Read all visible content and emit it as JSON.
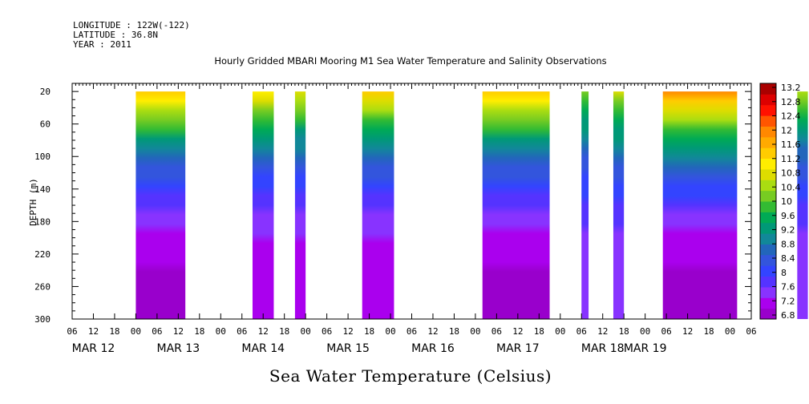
{
  "header": {
    "longitude": "LONGITUDE : 122W(-122)",
    "latitude": "LATITUDE : 36.8N",
    "year": "YEAR : 2011"
  },
  "chart_data": {
    "type": "heatmap",
    "title": "Hourly Gridded MBARI Mooring M1 Sea Water Temperature and Salinity Observations",
    "xlabel": "Sea Water Temperature (Celsius)",
    "ylabel": "DEPTH (m)",
    "y_ticks": [
      20,
      60,
      100,
      140,
      180,
      220,
      260,
      300
    ],
    "ylim": [
      300,
      10
    ],
    "x_hour_ticks": [
      "06",
      "12",
      "18",
      "00",
      "06",
      "12",
      "18",
      "00",
      "06",
      "12",
      "18",
      "00",
      "06",
      "12",
      "18",
      "00",
      "06",
      "12",
      "18",
      "00",
      "06",
      "12",
      "18",
      "00",
      "06",
      "12",
      "18",
      "00",
      "06",
      "12",
      "18",
      "00",
      "06"
    ],
    "date_labels": [
      "MAR 12",
      "MAR 13",
      "MAR 14",
      "MAR 15",
      "MAR 16",
      "MAR 17",
      "MAR 18",
      "MAR 19"
    ],
    "x_range_hours": [
      6,
      198
    ],
    "colorbar": {
      "labels": [
        "13.2",
        "12.8",
        "12.4",
        "12",
        "11.6",
        "11.2",
        "10.8",
        "10.4",
        "10",
        "9.6",
        "9.2",
        "8.8",
        "8.4",
        "8",
        "7.6",
        "7.2",
        "6.8"
      ],
      "min": 6.8,
      "max": 13.2,
      "colors": [
        "#9900cc",
        "#aa00ee",
        "#8833ff",
        "#5533ff",
        "#3344ff",
        "#3355dd",
        "#2266bb",
        "#118899",
        "#009977",
        "#00aa55",
        "#33bb33",
        "#77cc22",
        "#aadd11",
        "#dddd00",
        "#ffee00",
        "#ffcc00",
        "#ffaa00",
        "#ff8800",
        "#ff5500",
        "#ff1100",
        "#dd0000",
        "#aa0000"
      ]
    },
    "observation_blocks": [
      {
        "start_hour": 24,
        "end_hour": 38,
        "surface_temp": 11.4,
        "bottom_temp": 7.0
      },
      {
        "start_hour": 57,
        "end_hour": 63,
        "surface_temp": 11.0,
        "bottom_temp": 7.1
      },
      {
        "start_hour": 69,
        "end_hour": 72,
        "surface_temp": 10.8,
        "bottom_temp": 7.1
      },
      {
        "start_hour": 88,
        "end_hour": 97,
        "surface_temp": 11.2,
        "bottom_temp": 7.1
      },
      {
        "start_hour": 122,
        "end_hour": 141,
        "surface_temp": 11.4,
        "bottom_temp": 7.0
      },
      {
        "start_hour": 150,
        "end_hour": 152,
        "surface_temp": 10.2,
        "bottom_temp": 7.4
      },
      {
        "start_hour": 159,
        "end_hour": 162,
        "surface_temp": 10.6,
        "bottom_temp": 7.4
      },
      {
        "start_hour": 173,
        "end_hour": 194,
        "surface_temp": 11.8,
        "bottom_temp": 7.0
      },
      {
        "start_hour": 211,
        "end_hour": 214,
        "surface_temp": 10.4,
        "bottom_temp": 7.4
      }
    ]
  }
}
